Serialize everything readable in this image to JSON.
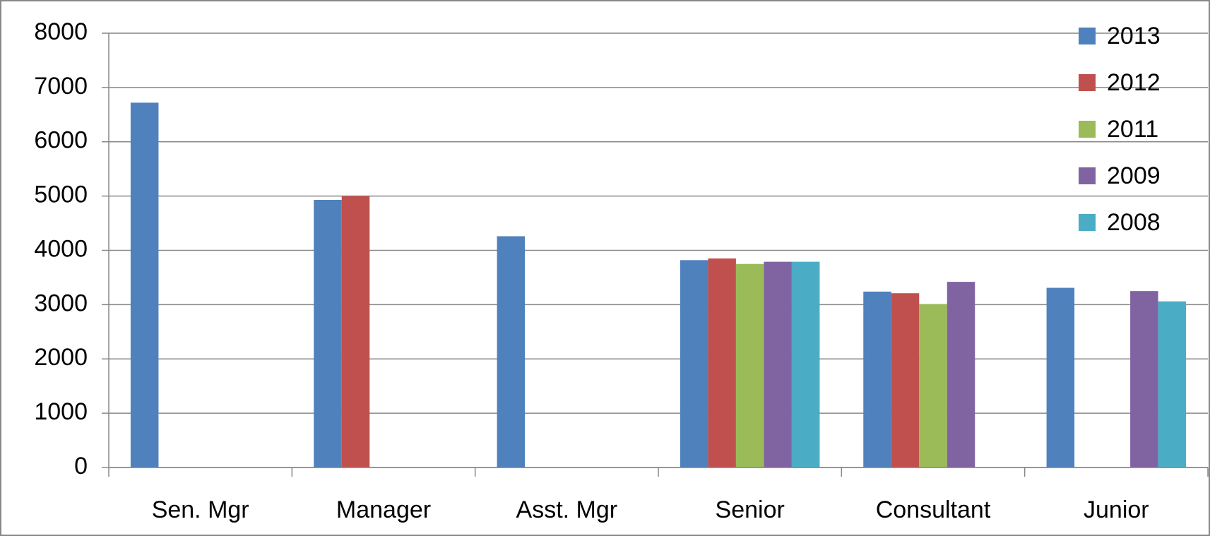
{
  "chart_data": {
    "type": "bar",
    "categories": [
      "Sen. Mgr",
      "Manager",
      "Asst. Mgr",
      "Senior",
      "Consultant",
      "Junior"
    ],
    "series": [
      {
        "name": "2013",
        "color": "#4f81bd",
        "values": [
          6720,
          4930,
          4260,
          3820,
          3240,
          3310
        ]
      },
      {
        "name": "2012",
        "color": "#c0504d",
        "values": [
          null,
          5000,
          null,
          3850,
          3210,
          null
        ]
      },
      {
        "name": "2011",
        "color": "#9bbb59",
        "values": [
          null,
          null,
          null,
          3750,
          3010,
          null
        ]
      },
      {
        "name": "2009",
        "color": "#8064a2",
        "values": [
          null,
          null,
          null,
          3790,
          3420,
          3250
        ]
      },
      {
        "name": "2008",
        "color": "#4bacc6",
        "values": [
          null,
          null,
          null,
          3790,
          null,
          3060
        ]
      }
    ],
    "ylim": [
      0,
      8000
    ],
    "yticks": [
      0,
      1000,
      2000,
      3000,
      4000,
      5000,
      6000,
      7000,
      8000
    ],
    "grid": true,
    "legend": "top-right"
  }
}
